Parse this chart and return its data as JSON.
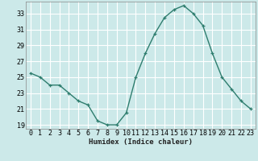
{
  "x": [
    0,
    1,
    2,
    3,
    4,
    5,
    6,
    7,
    8,
    9,
    10,
    11,
    12,
    13,
    14,
    15,
    16,
    17,
    18,
    19,
    20,
    21,
    22,
    23
  ],
  "y": [
    25.5,
    25.0,
    24.0,
    24.0,
    23.0,
    22.0,
    21.5,
    19.5,
    19.0,
    19.0,
    20.5,
    25.0,
    28.0,
    30.5,
    32.5,
    33.5,
    34.0,
    33.0,
    31.5,
    28.0,
    25.0,
    23.5,
    22.0,
    21.0
  ],
  "line_color": "#2e7d6e",
  "marker": "+",
  "marker_size": 3,
  "bg_color": "#cce9e9",
  "grid_color": "#ffffff",
  "xlabel": "Humidex (Indice chaleur)",
  "xlim": [
    -0.5,
    23.5
  ],
  "ylim": [
    18.5,
    34.5
  ],
  "yticks": [
    19,
    21,
    23,
    25,
    27,
    29,
    31,
    33
  ],
  "xticks": [
    0,
    1,
    2,
    3,
    4,
    5,
    6,
    7,
    8,
    9,
    10,
    11,
    12,
    13,
    14,
    15,
    16,
    17,
    18,
    19,
    20,
    21,
    22,
    23
  ],
  "xlabel_fontsize": 6.5,
  "tick_fontsize": 6,
  "line_width": 1.0
}
